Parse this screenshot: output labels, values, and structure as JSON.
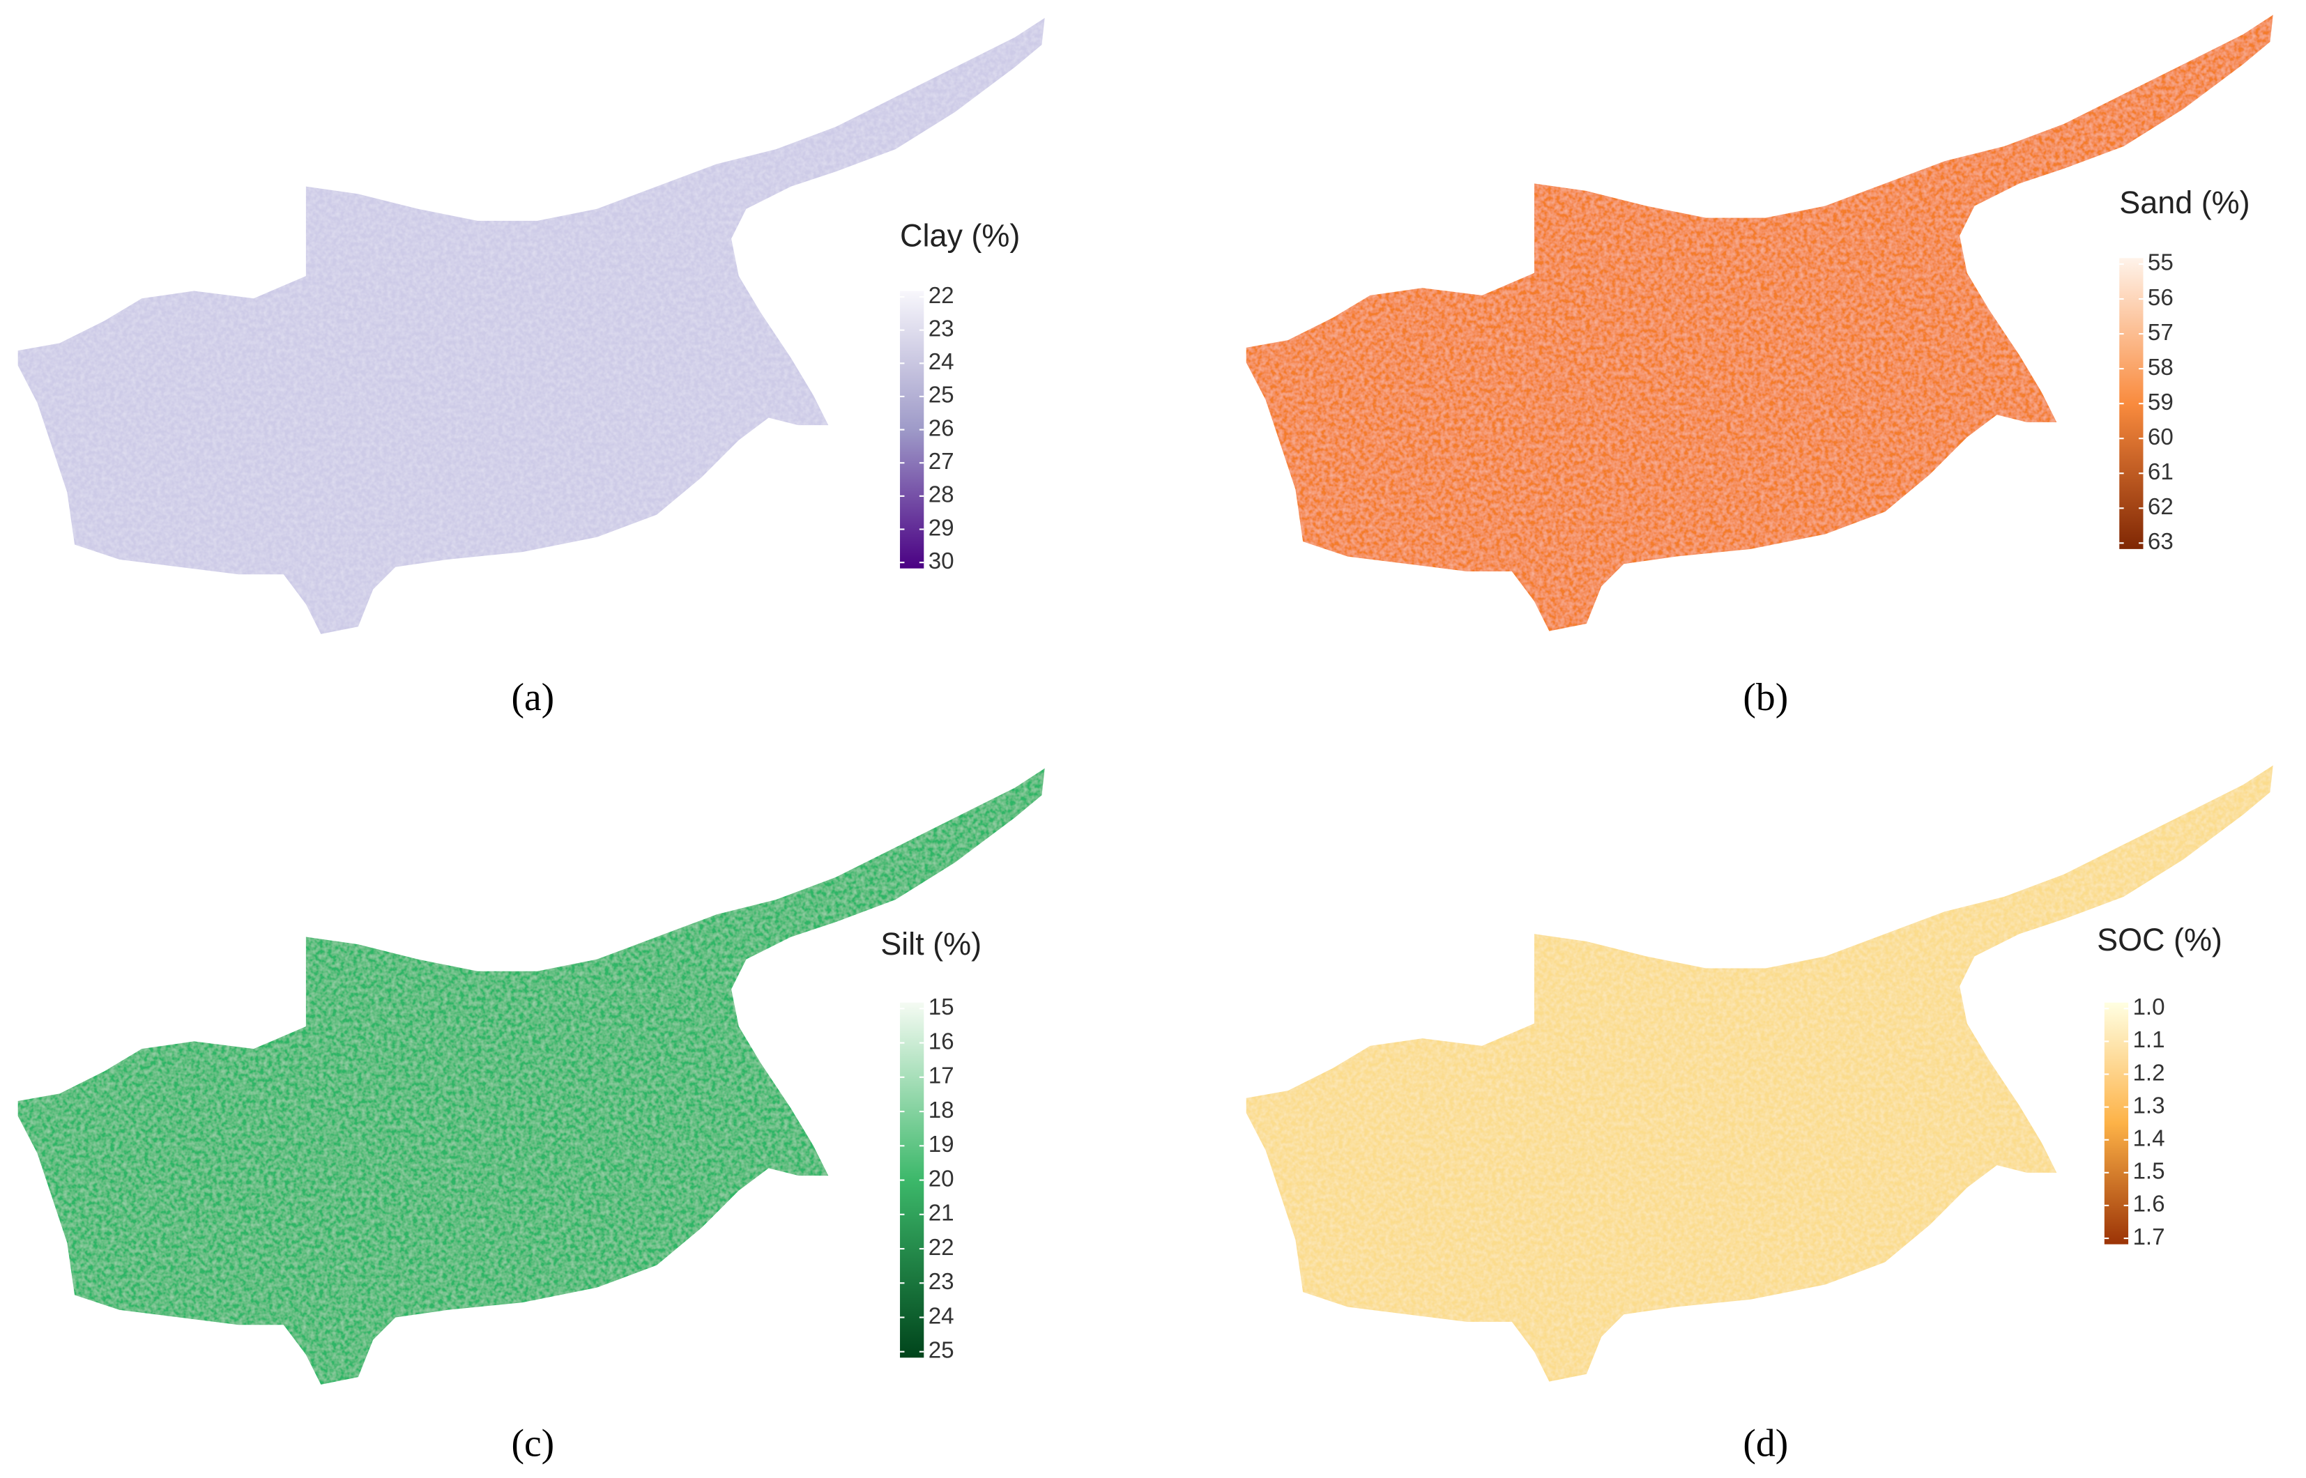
{
  "panels": [
    {
      "legend_title": "Clay (%)",
      "ticks": [
        22,
        23,
        24,
        25,
        26,
        27,
        28,
        29,
        30
      ],
      "gradient": [
        "#f8f7fc",
        "#9e9ac8",
        "#4a0083"
      ],
      "map_color": "#cdcbe7",
      "caption": "(a)"
    },
    {
      "legend_title": "Sand (%)",
      "ticks": [
        55,
        56,
        57,
        58,
        59,
        60,
        61,
        62,
        63
      ],
      "gradient": [
        "#fff3ea",
        "#f98b3e",
        "#7f2704"
      ],
      "map_color": "#f47c2c",
      "caption": "(b)"
    },
    {
      "legend_title": "Silt (%)",
      "ticks": [
        15,
        16,
        17,
        18,
        19,
        20,
        21,
        22,
        23,
        24,
        25
      ],
      "gradient": [
        "#f5fbf3",
        "#3cb86a",
        "#00441b"
      ],
      "map_color": "#2fb566",
      "caption": "(c)"
    },
    {
      "legend_title": "SOC (%)",
      "ticks": [
        {
          "value": 1,
          "label": "1.0"
        },
        1.1,
        1.2,
        1.3,
        1.4,
        1.5,
        1.6,
        1.7
      ],
      "gradient": [
        "#ffffe2",
        "#fdb247",
        "#9b3306"
      ],
      "map_color": "#fbdc8c",
      "caption": "(d)"
    }
  ]
}
